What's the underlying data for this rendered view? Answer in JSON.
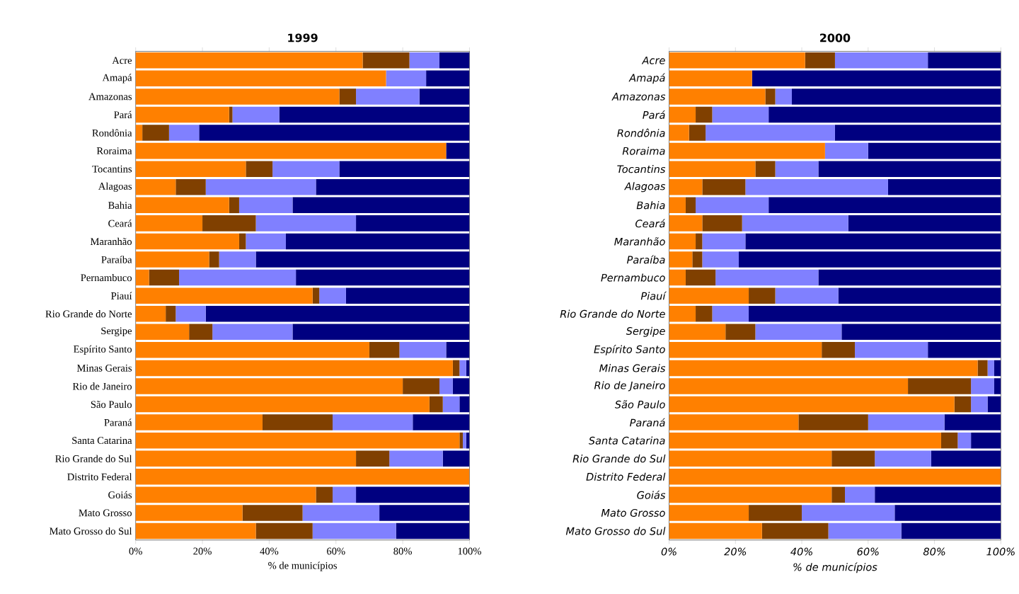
{
  "chart_data": [
    {
      "type": "bar",
      "orientation": "horizontal",
      "stacked": true,
      "title": "1999",
      "xlabel": "% de municípios",
      "categories": [
        "Acre",
        "Amapá",
        "Amazonas",
        "Pará",
        "Rondônia",
        "Roraima",
        "Tocantins",
        "Alagoas",
        "Bahia",
        "Ceará",
        "Maranhão",
        "Paraíba",
        "Pernambuco",
        "Piauí",
        "Rio Grande do Norte",
        "Sergipe",
        "Espírito Santo",
        "Minas Gerais",
        "Rio de Janeiro",
        "São Paulo",
        "Paraná",
        "Santa Catarina",
        "Rio Grande do Sul",
        "Distrito Federal",
        "Goiás",
        "Mato Grosso",
        "Mato Grosso do Sul"
      ],
      "series": [
        {
          "color": "#ff8000",
          "values": [
            68,
            75,
            61,
            28,
            2,
            93,
            33,
            12,
            28,
            20,
            31,
            22,
            4,
            53,
            9,
            16,
            70,
            95,
            80,
            88,
            38,
            97,
            66,
            100,
            54,
            32,
            36
          ]
        },
        {
          "color": "#804000",
          "values": [
            14,
            0,
            5,
            1,
            8,
            0,
            8,
            9,
            3,
            16,
            2,
            3,
            9,
            2,
            3,
            7,
            9,
            2,
            11,
            4,
            21,
            1,
            10,
            0,
            5,
            18,
            17
          ]
        },
        {
          "color": "#8080ff",
          "values": [
            9,
            12,
            19,
            14,
            9,
            0,
            20,
            33,
            16,
            30,
            12,
            11,
            35,
            8,
            9,
            24,
            14,
            2,
            4,
            5,
            24,
            1,
            16,
            0,
            7,
            23,
            25
          ]
        },
        {
          "color": "#000080",
          "values": [
            9,
            13,
            15,
            57,
            81,
            7,
            39,
            46,
            53,
            34,
            55,
            64,
            52,
            37,
            79,
            53,
            7,
            1,
            5,
            3,
            17,
            1,
            8,
            0,
            34,
            27,
            22
          ]
        }
      ],
      "xlim": [
        0,
        100
      ],
      "xticks": [
        {
          "value": 0,
          "label": "0%"
        },
        {
          "value": 20,
          "label": "20%"
        },
        {
          "value": 40,
          "label": "40%"
        },
        {
          "value": 60,
          "label": "60%"
        },
        {
          "value": 80,
          "label": "80%"
        },
        {
          "value": 100,
          "label": "100%"
        }
      ]
    },
    {
      "type": "bar",
      "orientation": "horizontal",
      "stacked": true,
      "title": "2000",
      "xlabel": "% de municípios",
      "categories": [
        "Acre",
        "Amapá",
        "Amazonas",
        "Pará",
        "Rondônia",
        "Roraima",
        "Tocantins",
        "Alagoas",
        "Bahia",
        "Ceará",
        "Maranhão",
        "Paraíba",
        "Pernambuco",
        "Piauí",
        "Rio Grande do Norte",
        "Sergipe",
        "Espírito Santo",
        "Minas Gerais",
        "Rio de Janeiro",
        "São Paulo",
        "Paraná",
        "Santa Catarina",
        "Rio Grande do Sul",
        "Distrito Federal",
        "Goiás",
        "Mato Grosso",
        "Mato Grosso do Sul"
      ],
      "series": [
        {
          "color": "#ff8000",
          "values": [
            41,
            25,
            29,
            8,
            6,
            47,
            26,
            10,
            5,
            10,
            8,
            7,
            5,
            24,
            8,
            17,
            46,
            93,
            72,
            86,
            39,
            82,
            49,
            100,
            49,
            24,
            28
          ]
        },
        {
          "color": "#804000",
          "values": [
            9,
            0,
            3,
            5,
            5,
            0,
            6,
            13,
            3,
            12,
            2,
            3,
            9,
            8,
            5,
            9,
            10,
            3,
            19,
            5,
            21,
            5,
            13,
            0,
            4,
            16,
            20
          ]
        },
        {
          "color": "#8080ff",
          "values": [
            28,
            0,
            5,
            17,
            39,
            13,
            13,
            43,
            22,
            32,
            13,
            11,
            31,
            19,
            11,
            26,
            22,
            2,
            7,
            5,
            23,
            4,
            17,
            0,
            9,
            28,
            22
          ]
        },
        {
          "color": "#000080",
          "values": [
            22,
            75,
            63,
            70,
            50,
            40,
            55,
            34,
            70,
            46,
            77,
            79,
            55,
            49,
            76,
            48,
            22,
            2,
            2,
            4,
            17,
            9,
            21,
            0,
            38,
            32,
            30
          ]
        }
      ],
      "xlim": [
        0,
        100
      ],
      "xticks": [
        {
          "value": 0,
          "label": "0%"
        },
        {
          "value": 20,
          "label": "20%"
        },
        {
          "value": 40,
          "label": "40%"
        },
        {
          "value": 60,
          "label": "60%"
        },
        {
          "value": 80,
          "label": "80%"
        },
        {
          "value": 100,
          "label": "100%"
        }
      ]
    }
  ]
}
